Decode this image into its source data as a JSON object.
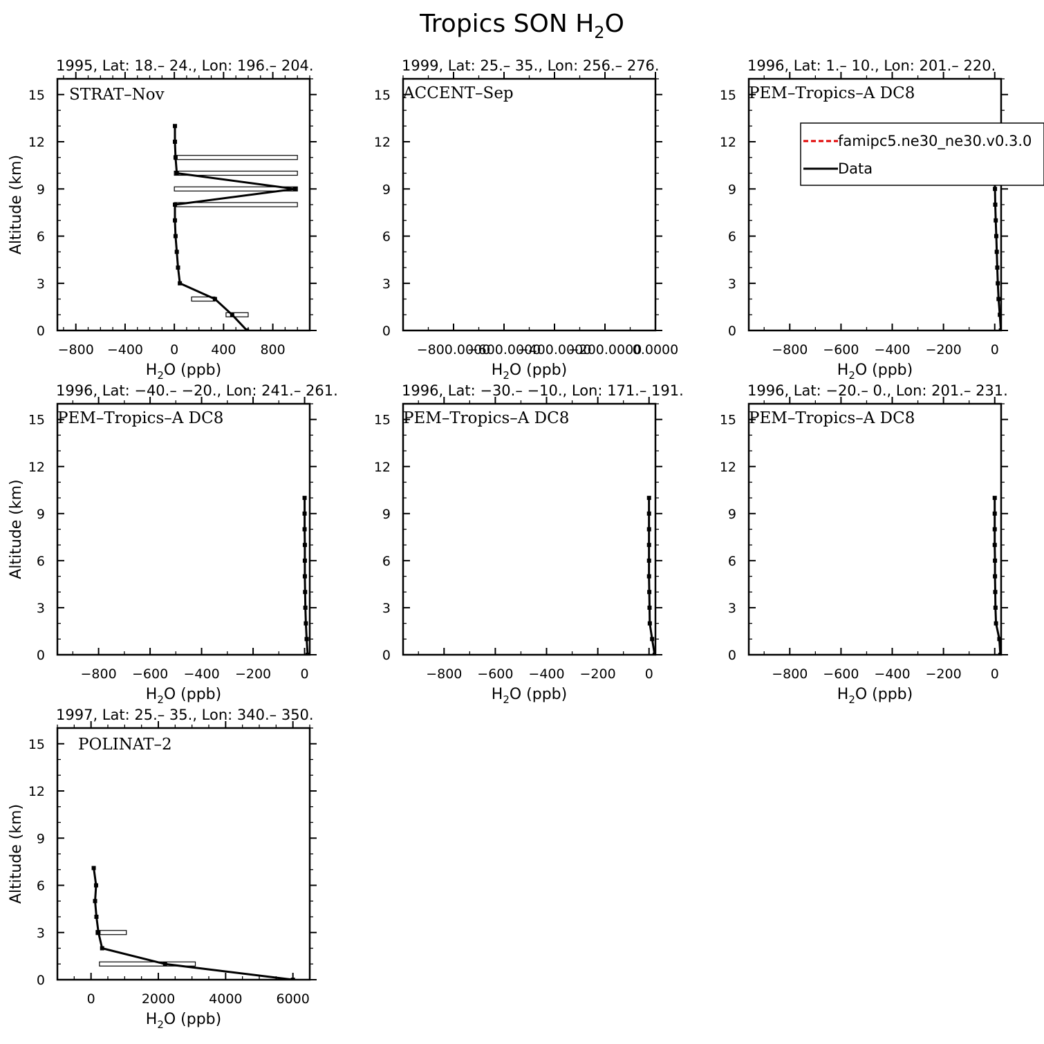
{
  "figure": {
    "title_main": "Tropics SON H",
    "title_sub": "2",
    "title_tail": "O"
  },
  "legend": {
    "entries": [
      {
        "label": "famipc5.ne30_ne30.v0.3.0",
        "color": "#e00000",
        "style": "dashed"
      },
      {
        "label": "Data",
        "color": "#000000",
        "style": "solid"
      }
    ]
  },
  "chart_data": [
    {
      "type": "line",
      "header": "1995, Lat: 18.– 24., Lon: 196.– 204.",
      "campaign": "STRAT–Nov",
      "xlabel": "H₂O (ppb)",
      "ylabel": "Altitude (km)",
      "xlim": [
        -950,
        1100
      ],
      "ylim": [
        0,
        16
      ],
      "xticks": [
        -800,
        -400,
        0,
        400,
        800
      ],
      "xtick_labels": [
        "−800",
        "−400",
        "0",
        "400",
        "800"
      ],
      "xminor": 100,
      "yticks": [
        0,
        3,
        6,
        9,
        12,
        15
      ],
      "ytick_labels": [
        "0",
        "3",
        "6",
        "9",
        "12",
        "15"
      ],
      "series": [
        {
          "name": "Data",
          "x": [
            590,
            470,
            330,
            45,
            30,
            20,
            10,
            5,
            5,
            980,
            20,
            10,
            5,
            5
          ],
          "y": [
            0,
            1,
            2,
            3,
            4,
            5,
            6,
            7,
            8,
            9,
            10,
            11,
            12,
            13
          ]
        }
      ],
      "ranges": [
        {
          "y": 1,
          "xmin": 420,
          "xmax": 600
        },
        {
          "y": 2,
          "xmin": 140,
          "xmax": 330
        },
        {
          "y": 8,
          "xmin": 0,
          "xmax": 1000
        },
        {
          "y": 9,
          "xmin": 0,
          "xmax": 1000
        },
        {
          "y": 10,
          "xmin": 0,
          "xmax": 1000
        },
        {
          "y": 11,
          "xmin": 0,
          "xmax": 1000
        }
      ]
    },
    {
      "type": "line",
      "header": "1999, Lat: 25.– 35., Lon: 256.– 276.",
      "campaign": "ACCENT–Sep",
      "xlabel": "H₂O (ppb)",
      "ylabel": "",
      "xlim": [
        -1000,
        0
      ],
      "ylim": [
        0,
        16
      ],
      "xticks": [
        -800,
        -600,
        -400,
        -200,
        0
      ],
      "xtick_labels": [
        "−800.0000",
        "−600.0000",
        "−400.0000",
        "−200.0000",
        "0.0000"
      ],
      "xminor": 100,
      "yticks": [
        0,
        3,
        6,
        9,
        12,
        15
      ],
      "ytick_labels": [
        "0",
        "3",
        "6",
        "9",
        "12",
        "15"
      ],
      "series": [],
      "ranges": []
    },
    {
      "type": "line",
      "header": "1996, Lat: 1.– 10., Lon: 201.– 220.",
      "campaign": "PEM–Tropics–A DC8",
      "xlabel": "H₂O (ppb)",
      "ylabel": "",
      "xlim": [
        -960,
        25
      ],
      "ylim": [
        0,
        16
      ],
      "xticks": [
        -800,
        -600,
        -400,
        -200,
        0
      ],
      "xtick_labels": [
        "−800",
        "−600",
        "−400",
        "−200",
        "0"
      ],
      "xminor": 100,
      "yticks": [
        0,
        3,
        6,
        9,
        12,
        15
      ],
      "ytick_labels": [
        "0",
        "3",
        "6",
        "9",
        "12",
        "15"
      ],
      "has_legend": true,
      "series": [
        {
          "name": "Data",
          "x": [
            24,
            20,
            15,
            12,
            10,
            8,
            6,
            4,
            2,
            1,
            0
          ],
          "y": [
            0,
            1,
            2,
            3,
            4,
            5,
            6,
            7,
            8,
            9,
            10
          ]
        }
      ],
      "ranges": []
    },
    {
      "type": "line",
      "header": "1996, Lat: −40.– −20., Lon: 241.– 261.",
      "campaign": "PEM–Tropics–A DC8",
      "xlabel": "H₂O (ppb)",
      "ylabel": "Altitude (km)",
      "xlim": [
        -960,
        20
      ],
      "ylim": [
        0,
        16
      ],
      "xticks": [
        -800,
        -600,
        -400,
        -200,
        0
      ],
      "xtick_labels": [
        "−800",
        "−600",
        "−400",
        "−200",
        "0"
      ],
      "xminor": 100,
      "yticks": [
        0,
        3,
        6,
        9,
        12,
        15
      ],
      "ytick_labels": [
        "0",
        "3",
        "6",
        "9",
        "12",
        "15"
      ],
      "series": [
        {
          "name": "Data",
          "x": [
            12,
            8,
            5,
            3,
            2,
            1,
            1,
            1,
            0,
            0,
            0
          ],
          "y": [
            0,
            1,
            2,
            3,
            4,
            5,
            6,
            7,
            8,
            9,
            10
          ]
        }
      ],
      "ranges": []
    },
    {
      "type": "line",
      "header": "1996, Lat: −30.– −10., Lon: 171.– 191.",
      "campaign": "PEM–Tropics–A DC8",
      "xlabel": "H₂O (ppb)",
      "ylabel": "",
      "xlim": [
        -960,
        25
      ],
      "ylim": [
        0,
        16
      ],
      "xticks": [
        -800,
        -600,
        -400,
        -200,
        0
      ],
      "xtick_labels": [
        "−800",
        "−600",
        "−400",
        "−200",
        "0"
      ],
      "xminor": 100,
      "yticks": [
        0,
        3,
        6,
        9,
        12,
        15
      ],
      "ytick_labels": [
        "0",
        "3",
        "6",
        "9",
        "12",
        "15"
      ],
      "series": [
        {
          "name": "Data",
          "x": [
            22,
            12,
            3,
            2,
            1,
            0,
            0,
            0,
            0,
            0,
            0
          ],
          "y": [
            0,
            1,
            2,
            3,
            4,
            5,
            6,
            7,
            8,
            9,
            10
          ]
        }
      ],
      "ranges": []
    },
    {
      "type": "line",
      "header": "1996, Lat: −20.– 0., Lon: 201.– 231.",
      "campaign": "PEM–Tropics–A DC8",
      "xlabel": "H₂O (ppb)",
      "ylabel": "",
      "xlim": [
        -960,
        25
      ],
      "ylim": [
        0,
        16
      ],
      "xticks": [
        -800,
        -600,
        -400,
        -200,
        0
      ],
      "xtick_labels": [
        "−800",
        "−600",
        "−400",
        "−200",
        "0"
      ],
      "xminor": 100,
      "yticks": [
        0,
        3,
        6,
        9,
        12,
        15
      ],
      "ytick_labels": [
        "0",
        "3",
        "6",
        "9",
        "12",
        "15"
      ],
      "series": [
        {
          "name": "Data",
          "x": [
            22,
            18,
            5,
            3,
            2,
            1,
            1,
            0,
            0,
            0,
            0
          ],
          "y": [
            0,
            1,
            2,
            3,
            4,
            5,
            6,
            7,
            8,
            9,
            10
          ]
        }
      ],
      "ranges": []
    },
    {
      "type": "line",
      "header": "1997, Lat: 25.– 35., Lon: 340.– 350.",
      "campaign": "POLINAT–2",
      "xlabel": "H₂O (ppb)",
      "ylabel": "Altitude (km)",
      "xlim": [
        -1000,
        6500
      ],
      "ylim": [
        0,
        16
      ],
      "xticks": [
        0,
        2000,
        4000,
        6000
      ],
      "xtick_labels": [
        "0",
        "2000",
        "4000",
        "6000"
      ],
      "xminor": 500,
      "yticks": [
        0,
        3,
        6,
        9,
        12,
        15
      ],
      "ytick_labels": [
        "0",
        "3",
        "6",
        "9",
        "12",
        "15"
      ],
      "series": [
        {
          "name": "Data",
          "x": [
            6000,
            2200,
            330,
            220,
            160,
            120,
            150,
            80
          ],
          "y": [
            0,
            1,
            2,
            3,
            4,
            5,
            6,
            7.1
          ]
        }
      ],
      "ranges": [
        {
          "y": 1,
          "xmin": 250,
          "xmax": 3100
        },
        {
          "y": 3,
          "xmin": 150,
          "xmax": 1050
        }
      ]
    }
  ]
}
